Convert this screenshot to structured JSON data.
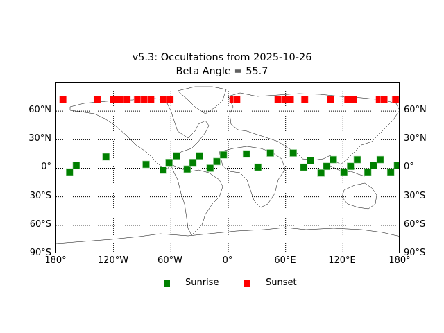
{
  "chart_data": {
    "type": "scatter",
    "title": "v5.3: Occultations from 2025-10-26",
    "subtitle": "Beta Angle = 55.7",
    "xlabel": "",
    "ylabel": "",
    "projection": "cylindrical world map",
    "xlim": [
      -180,
      180
    ],
    "ylim": [
      -90,
      90
    ],
    "x_ticks": [
      "180°",
      "120°W",
      "60°W",
      "0°",
      "60°E",
      "120°E",
      "180°"
    ],
    "y_ticks": [
      "90°S",
      "60°S",
      "30°S",
      "0°",
      "30°N",
      "60°N"
    ],
    "grid": true,
    "legend_position": "bottom center",
    "series": [
      {
        "name": "Sunrise",
        "color": "#008000",
        "marker": "square",
        "points": [
          {
            "lon": -166,
            "lat": -4
          },
          {
            "lon": -159,
            "lat": 3
          },
          {
            "lon": -128,
            "lat": 12
          },
          {
            "lon": -86,
            "lat": 4
          },
          {
            "lon": -68,
            "lat": -2
          },
          {
            "lon": -62,
            "lat": 6
          },
          {
            "lon": -54,
            "lat": 13
          },
          {
            "lon": -43,
            "lat": -1
          },
          {
            "lon": -37,
            "lat": 6
          },
          {
            "lon": -30,
            "lat": 13
          },
          {
            "lon": -19,
            "lat": 0
          },
          {
            "lon": -12,
            "lat": 7
          },
          {
            "lon": -5,
            "lat": 14
          },
          {
            "lon": 19,
            "lat": 15
          },
          {
            "lon": 31,
            "lat": 1
          },
          {
            "lon": 44,
            "lat": 16
          },
          {
            "lon": 68,
            "lat": 16
          },
          {
            "lon": 79,
            "lat": 1
          },
          {
            "lon": 86,
            "lat": 8
          },
          {
            "lon": 97,
            "lat": -5
          },
          {
            "lon": 103,
            "lat": 2
          },
          {
            "lon": 110,
            "lat": 9
          },
          {
            "lon": 121,
            "lat": -4
          },
          {
            "lon": 128,
            "lat": 2
          },
          {
            "lon": 135,
            "lat": 9
          },
          {
            "lon": 146,
            "lat": -4
          },
          {
            "lon": 152,
            "lat": 3
          },
          {
            "lon": 159,
            "lat": 9
          },
          {
            "lon": 170,
            "lat": -4
          },
          {
            "lon": 177,
            "lat": 3
          }
        ]
      },
      {
        "name": "Sunset",
        "color": "#ff0000",
        "marker": "square",
        "points": [
          {
            "lon": -173,
            "lat": 72
          },
          {
            "lon": -137,
            "lat": 72
          },
          {
            "lon": -120,
            "lat": 72
          },
          {
            "lon": -113,
            "lat": 72
          },
          {
            "lon": -106,
            "lat": 72
          },
          {
            "lon": -95,
            "lat": 72
          },
          {
            "lon": -88,
            "lat": 72
          },
          {
            "lon": -81,
            "lat": 72
          },
          {
            "lon": -68,
            "lat": 72
          },
          {
            "lon": -61,
            "lat": 72
          },
          {
            "lon": 5,
            "lat": 72
          },
          {
            "lon": 9,
            "lat": 72
          },
          {
            "lon": 52,
            "lat": 72
          },
          {
            "lon": 59,
            "lat": 72
          },
          {
            "lon": 65,
            "lat": 72
          },
          {
            "lon": 80,
            "lat": 72
          },
          {
            "lon": 107,
            "lat": 72
          },
          {
            "lon": 125,
            "lat": 72
          },
          {
            "lon": 131,
            "lat": 72
          },
          {
            "lon": 158,
            "lat": 72
          },
          {
            "lon": 163,
            "lat": 72
          },
          {
            "lon": 175,
            "lat": 72
          }
        ]
      }
    ]
  },
  "legend": {
    "items": [
      {
        "label": "Sunrise",
        "color": "#008000"
      },
      {
        "label": "Sunset",
        "color": "#ff0000"
      }
    ]
  }
}
